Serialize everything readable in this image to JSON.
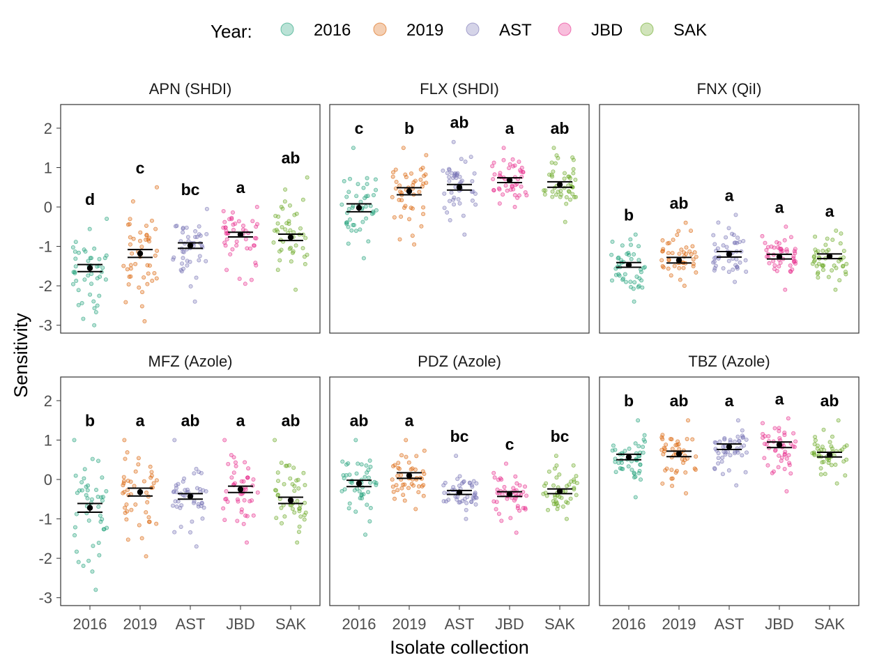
{
  "legend": {
    "title": "Year:",
    "entries": [
      {
        "label": "2016",
        "color": "#1b9e77"
      },
      {
        "label": "2019",
        "color": "#d95f02"
      },
      {
        "label": "AST",
        "color": "#7570b3"
      },
      {
        "label": "JBD",
        "color": "#e7298a"
      },
      {
        "label": "SAK",
        "color": "#66a61e"
      }
    ]
  },
  "chart_data": {
    "type": "scatter",
    "subtype": "faceted jittered strip plot with mean ± standard error",
    "xlabel": "Isolate collection",
    "ylabel": "Sensitivity",
    "categories": [
      "2016",
      "2019",
      "AST",
      "JBD",
      "SAK"
    ],
    "ylim": [
      -3.2,
      2.6
    ],
    "yticks": [
      -3,
      -2,
      -1,
      0,
      1,
      2
    ],
    "grid": false,
    "legend_position": "top",
    "panels": [
      {
        "title": "APN (SHDI)",
        "series": [
          {
            "name": "2016",
            "mean": -1.55,
            "se": 0.09,
            "letter": "d",
            "min": -3.0,
            "max": -0.3
          },
          {
            "name": "2019",
            "mean": -1.18,
            "se": 0.1,
            "letter": "c",
            "min": -2.9,
            "max": 0.5
          },
          {
            "name": "AST",
            "mean": -0.98,
            "se": 0.07,
            "letter": "bc",
            "min": -2.4,
            "max": -0.05
          },
          {
            "name": "JBD",
            "mean": -0.7,
            "se": 0.06,
            "letter": "a",
            "min": -1.95,
            "max": 0.0
          },
          {
            "name": "SAK",
            "mean": -0.77,
            "se": 0.08,
            "letter": "ab",
            "min": -2.1,
            "max": 0.75
          }
        ]
      },
      {
        "title": "FLX (SHDI)",
        "series": [
          {
            "name": "2016",
            "mean": -0.02,
            "se": 0.1,
            "letter": "c",
            "min": -1.3,
            "max": 1.5
          },
          {
            "name": "2019",
            "mean": 0.4,
            "se": 0.09,
            "letter": "b",
            "min": -0.95,
            "max": 1.5
          },
          {
            "name": "AST",
            "mean": 0.5,
            "se": 0.07,
            "letter": "ab",
            "min": -0.7,
            "max": 1.65
          },
          {
            "name": "JBD",
            "mean": 0.68,
            "se": 0.06,
            "letter": "a",
            "min": 0.0,
            "max": 1.5
          },
          {
            "name": "SAK",
            "mean": 0.57,
            "se": 0.07,
            "letter": "ab",
            "min": -0.38,
            "max": 1.5
          }
        ]
      },
      {
        "title": "FNX (QiI)",
        "series": [
          {
            "name": "2016",
            "mean": -1.47,
            "se": 0.06,
            "letter": "b",
            "min": -2.4,
            "max": -0.7
          },
          {
            "name": "2019",
            "mean": -1.35,
            "se": 0.07,
            "letter": "ab",
            "min": -2.0,
            "max": -0.4
          },
          {
            "name": "AST",
            "mean": -1.2,
            "se": 0.07,
            "letter": "a",
            "min": -1.9,
            "max": -0.2
          },
          {
            "name": "JBD",
            "mean": -1.26,
            "se": 0.06,
            "letter": "a",
            "min": -2.1,
            "max": -0.5
          },
          {
            "name": "SAK",
            "mean": -1.25,
            "se": 0.06,
            "letter": "a",
            "min": -2.1,
            "max": -0.6
          }
        ]
      },
      {
        "title": "MFZ (Azole)",
        "series": [
          {
            "name": "2016",
            "mean": -0.72,
            "se": 0.11,
            "letter": "b",
            "min": -2.8,
            "max": 1.0
          },
          {
            "name": "2019",
            "mean": -0.32,
            "se": 0.1,
            "letter": "a",
            "min": -1.95,
            "max": 1.0
          },
          {
            "name": "AST",
            "mean": -0.43,
            "se": 0.07,
            "letter": "ab",
            "min": -1.7,
            "max": 1.0
          },
          {
            "name": "JBD",
            "mean": -0.25,
            "se": 0.08,
            "letter": "a",
            "min": -1.6,
            "max": 1.0
          },
          {
            "name": "SAK",
            "mean": -0.53,
            "se": 0.08,
            "letter": "ab",
            "min": -1.6,
            "max": 1.0
          }
        ]
      },
      {
        "title": "PDZ (Azole)",
        "series": [
          {
            "name": "2016",
            "mean": -0.1,
            "se": 0.08,
            "letter": "ab",
            "min": -1.4,
            "max": 1.0
          },
          {
            "name": "2019",
            "mean": 0.1,
            "se": 0.07,
            "letter": "a",
            "min": -0.75,
            "max": 1.0
          },
          {
            "name": "AST",
            "mean": -0.33,
            "se": 0.05,
            "letter": "bc",
            "min": -1.0,
            "max": 0.6
          },
          {
            "name": "JBD",
            "mean": -0.37,
            "se": 0.06,
            "letter": "c",
            "min": -1.35,
            "max": 0.4
          },
          {
            "name": "SAK",
            "mean": -0.3,
            "se": 0.06,
            "letter": "bc",
            "min": -1.0,
            "max": 0.6
          }
        ]
      },
      {
        "title": "TBZ (Azole)",
        "series": [
          {
            "name": "2016",
            "mean": 0.57,
            "se": 0.07,
            "letter": "b",
            "min": -0.45,
            "max": 1.5
          },
          {
            "name": "2019",
            "mean": 0.65,
            "se": 0.07,
            "letter": "ab",
            "min": -0.35,
            "max": 1.5
          },
          {
            "name": "AST",
            "mean": 0.83,
            "se": 0.07,
            "letter": "a",
            "min": -0.15,
            "max": 1.5
          },
          {
            "name": "JBD",
            "mean": 0.88,
            "se": 0.07,
            "letter": "a",
            "min": -0.3,
            "max": 1.55
          },
          {
            "name": "SAK",
            "mean": 0.63,
            "se": 0.06,
            "letter": "ab",
            "min": -0.1,
            "max": 1.5
          }
        ]
      }
    ]
  }
}
